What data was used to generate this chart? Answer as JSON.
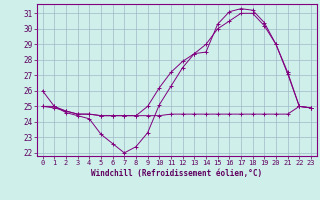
{
  "xlabel": "Windchill (Refroidissement éolien,°C)",
  "bg_color": "#cff0ea",
  "line_color": "#800080",
  "grid_color": "#a0b8c8",
  "xlim": [
    -0.5,
    23.5
  ],
  "ylim": [
    21.8,
    31.6
  ],
  "yticks": [
    22,
    23,
    24,
    25,
    26,
    27,
    28,
    29,
    30,
    31
  ],
  "xticks": [
    0,
    1,
    2,
    3,
    4,
    5,
    6,
    7,
    8,
    9,
    10,
    11,
    12,
    13,
    14,
    15,
    16,
    17,
    18,
    19,
    20,
    21,
    22,
    23
  ],
  "series": [
    {
      "x": [
        0,
        1,
        2,
        3,
        4,
        5,
        6,
        7,
        8,
        9,
        10,
        11,
        12,
        13,
        14,
        15,
        16,
        17,
        18,
        19,
        20,
        21,
        22,
        23
      ],
      "y": [
        26.0,
        25.0,
        24.6,
        24.4,
        24.2,
        23.2,
        22.6,
        22.0,
        22.4,
        23.3,
        25.1,
        26.3,
        27.5,
        28.4,
        28.5,
        30.3,
        31.1,
        31.3,
        31.2,
        30.4,
        29.0,
        27.1,
        25.0,
        24.9
      ]
    },
    {
      "x": [
        0,
        1,
        2,
        3,
        4,
        5,
        6,
        7,
        8,
        9,
        10,
        11,
        12,
        13,
        14,
        15,
        16,
        17,
        18,
        19,
        20,
        21,
        22,
        23
      ],
      "y": [
        25.0,
        24.9,
        24.7,
        24.5,
        24.5,
        24.4,
        24.4,
        24.4,
        24.4,
        24.4,
        24.4,
        24.5,
        24.5,
        24.5,
        24.5,
        24.5,
        24.5,
        24.5,
        24.5,
        24.5,
        24.5,
        24.5,
        25.0,
        24.9
      ]
    },
    {
      "x": [
        0,
        1,
        2,
        3,
        4,
        5,
        6,
        7,
        8,
        9,
        10,
        11,
        12,
        13,
        14,
        15,
        16,
        17,
        18,
        19,
        20,
        21,
        22,
        23
      ],
      "y": [
        25.0,
        25.0,
        24.7,
        24.5,
        24.5,
        24.4,
        24.4,
        24.4,
        24.4,
        25.0,
        26.2,
        27.2,
        27.9,
        28.4,
        29.0,
        30.0,
        30.5,
        31.0,
        31.0,
        30.2,
        29.0,
        27.2,
        25.0,
        24.9
      ]
    }
  ]
}
